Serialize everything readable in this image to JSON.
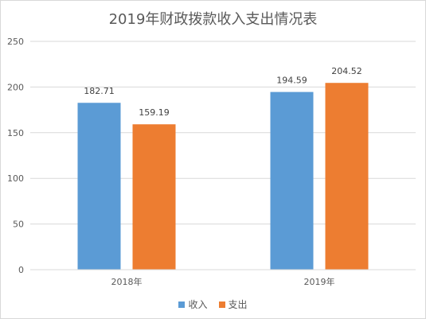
{
  "chart_data": {
    "type": "bar",
    "title": "2019年财政拨款收入支出情况表",
    "categories": [
      "2018年",
      "2019年"
    ],
    "series": [
      {
        "name": "收入",
        "values": [
          182.71,
          194.59
        ],
        "color": "#5b9bd5",
        "labels": [
          "182.71",
          "194.59"
        ]
      },
      {
        "name": "支出",
        "values": [
          159.19,
          204.52
        ],
        "color": "#ed7d31",
        "labels": [
          "159.19",
          "204.52"
        ]
      }
    ],
    "ylim": [
      0,
      250
    ],
    "yticks": [
      0,
      50,
      100,
      150,
      200,
      250
    ],
    "grid": true,
    "legend_position": "bottom"
  }
}
